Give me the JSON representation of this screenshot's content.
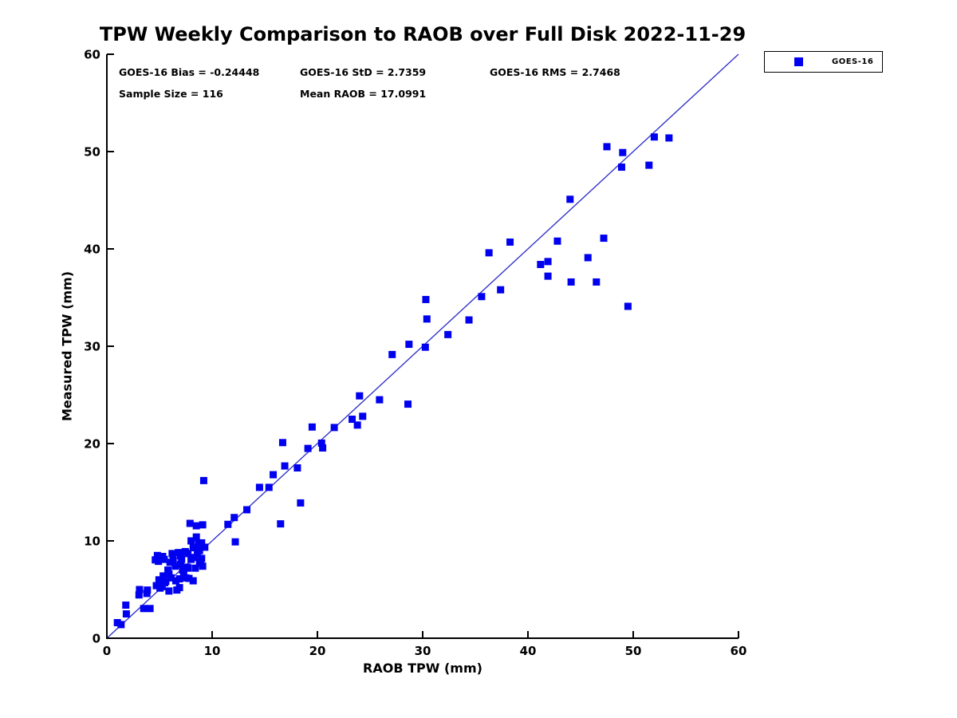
{
  "title": "TPW Weekly Comparison to RAOB over Full Disk 2022-11-29",
  "stats": {
    "bias": "GOES-16 Bias = -0.24448",
    "std": "GOES-16 StD = 2.7359",
    "rms": "GOES-16 RMS = 2.7468",
    "sample_size": "Sample Size = 116",
    "mean_raob": "Mean RAOB = 17.0991"
  },
  "legend": {
    "entries": [
      {
        "label": "GOES-16",
        "marker_color": "#0000f0"
      }
    ]
  },
  "colors": {
    "marker": "#0000f0",
    "line": "#3333cc",
    "axis": "#000000",
    "background": "#ffffff"
  },
  "chart_data": {
    "type": "scatter",
    "title": "TPW Weekly Comparison to RAOB over Full Disk 2022-11-29",
    "xlabel": "RAOB TPW (mm)",
    "ylabel": "Measured TPW (mm)",
    "xlim": [
      0,
      60
    ],
    "ylim": [
      0,
      60
    ],
    "xticks": [
      0,
      10,
      20,
      30,
      40,
      50,
      60
    ],
    "yticks": [
      0,
      10,
      20,
      30,
      40,
      50,
      60
    ],
    "grid": false,
    "legend_position": "top-right-outside",
    "identity_line": {
      "from": [
        0,
        0
      ],
      "to": [
        60,
        60
      ]
    },
    "series": [
      {
        "name": "GOES-16",
        "marker": "square",
        "color": "#0000f0",
        "points": [
          [
            1.0,
            1.6
          ],
          [
            1.35,
            1.4
          ],
          [
            1.8,
            3.4
          ],
          [
            1.85,
            2.5
          ],
          [
            3.05,
            4.45
          ],
          [
            3.1,
            5.0
          ],
          [
            3.5,
            3.05
          ],
          [
            3.8,
            4.6
          ],
          [
            4.1,
            3.05
          ],
          [
            3.85,
            4.95
          ],
          [
            4.6,
            8.05
          ],
          [
            4.7,
            5.4
          ],
          [
            4.8,
            8.5
          ],
          [
            4.9,
            7.9
          ],
          [
            4.95,
            6.0
          ],
          [
            5.25,
            5.3
          ],
          [
            5.3,
            8.4
          ],
          [
            5.35,
            6.4
          ],
          [
            5.45,
            8.1
          ],
          [
            5.5,
            5.7
          ],
          [
            5.6,
            5.85
          ],
          [
            5.8,
            7.0
          ],
          [
            5.9,
            6.6
          ],
          [
            5.9,
            4.85
          ],
          [
            6.0,
            7.8
          ],
          [
            6.1,
            6.2
          ],
          [
            6.2,
            8.7
          ],
          [
            6.3,
            8.05
          ],
          [
            6.65,
            4.95
          ],
          [
            6.8,
            8.8
          ],
          [
            6.9,
            6.1
          ],
          [
            6.9,
            5.2
          ],
          [
            7.0,
            8.45
          ],
          [
            7.1,
            8.1
          ],
          [
            7.3,
            6.8
          ],
          [
            7.5,
            6.2
          ],
          [
            7.65,
            7.3
          ],
          [
            7.7,
            8.7
          ],
          [
            7.7,
            7.2
          ],
          [
            7.8,
            6.15
          ],
          [
            6.5,
            7.4
          ],
          [
            7.2,
            7.0
          ],
          [
            6.55,
            5.9
          ],
          [
            5.05,
            5.15
          ],
          [
            7.0,
            7.6
          ],
          [
            7.9,
            11.8
          ],
          [
            8.0,
            10.0
          ],
          [
            8.0,
            8.1
          ],
          [
            8.2,
            9.3
          ],
          [
            8.2,
            5.9
          ],
          [
            8.3,
            8.3
          ],
          [
            8.4,
            7.2
          ],
          [
            8.5,
            11.55
          ],
          [
            8.5,
            10.4
          ],
          [
            8.6,
            8.6
          ],
          [
            8.7,
            9.7
          ],
          [
            8.8,
            9.0
          ],
          [
            8.8,
            7.8
          ],
          [
            8.9,
            7.7
          ],
          [
            9.0,
            9.8
          ],
          [
            9.0,
            8.2
          ],
          [
            9.1,
            11.65
          ],
          [
            9.3,
            9.35
          ],
          [
            9.1,
            7.4
          ],
          [
            7.45,
            8.9
          ],
          [
            9.2,
            16.2
          ],
          [
            11.5,
            11.7
          ],
          [
            12.1,
            12.4
          ],
          [
            12.2,
            9.9
          ],
          [
            13.3,
            13.2
          ],
          [
            14.5,
            15.5
          ],
          [
            15.4,
            15.5
          ],
          [
            15.8,
            16.8
          ],
          [
            16.5,
            11.75
          ],
          [
            16.7,
            20.1
          ],
          [
            16.9,
            17.7
          ],
          [
            18.1,
            17.5
          ],
          [
            18.4,
            13.9
          ],
          [
            19.1,
            19.5
          ],
          [
            19.5,
            21.7
          ],
          [
            20.4,
            20.05
          ],
          [
            20.5,
            19.55
          ],
          [
            21.6,
            21.65
          ],
          [
            23.3,
            22.5
          ],
          [
            23.8,
            21.9
          ],
          [
            24.3,
            22.8
          ],
          [
            24.0,
            24.9
          ],
          [
            25.9,
            24.5
          ],
          [
            27.1,
            29.15
          ],
          [
            28.6,
            24.05
          ],
          [
            28.7,
            30.2
          ],
          [
            30.25,
            29.9
          ],
          [
            30.4,
            32.8
          ],
          [
            30.3,
            34.8
          ],
          [
            32.4,
            31.2
          ],
          [
            34.4,
            32.7
          ],
          [
            35.6,
            35.1
          ],
          [
            36.3,
            39.6
          ],
          [
            37.4,
            35.8
          ],
          [
            38.3,
            40.7
          ],
          [
            41.2,
            38.4
          ],
          [
            41.9,
            38.7
          ],
          [
            41.9,
            37.2
          ],
          [
            42.8,
            40.8
          ],
          [
            44.0,
            45.1
          ],
          [
            44.1,
            36.6
          ],
          [
            45.7,
            39.1
          ],
          [
            46.5,
            36.6
          ],
          [
            47.2,
            41.1
          ],
          [
            47.5,
            50.5
          ],
          [
            48.9,
            48.4
          ],
          [
            49.0,
            49.9
          ],
          [
            49.5,
            34.1
          ],
          [
            51.5,
            48.6
          ],
          [
            52.0,
            51.5
          ],
          [
            53.4,
            51.4
          ]
        ]
      }
    ]
  }
}
